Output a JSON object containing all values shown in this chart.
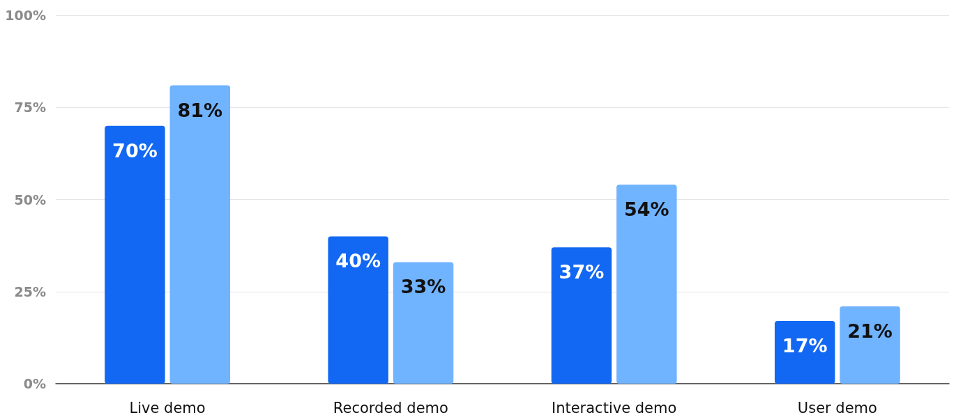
{
  "chart_data": {
    "type": "bar",
    "categories": [
      "Live demo",
      "Recorded demo",
      "Interactive demo",
      "User demo"
    ],
    "series": [
      {
        "color": "#1268f3",
        "values": [
          70,
          40,
          37,
          17
        ],
        "value_labels": [
          "70%",
          "40%",
          "37%",
          "17%"
        ]
      },
      {
        "color": "#70b3ff",
        "values": [
          81,
          33,
          54,
          21
        ],
        "value_labels": [
          "81%",
          "33%",
          "54%",
          "21%"
        ]
      }
    ],
    "ylim": [
      0,
      100
    ],
    "yticks": [
      {
        "value": 0,
        "label": "0%"
      },
      {
        "value": 25,
        "label": "25%"
      },
      {
        "value": 50,
        "label": "50%"
      },
      {
        "value": 75,
        "label": "75%"
      },
      {
        "value": 100,
        "label": "100%"
      }
    ],
    "grid": "y"
  }
}
